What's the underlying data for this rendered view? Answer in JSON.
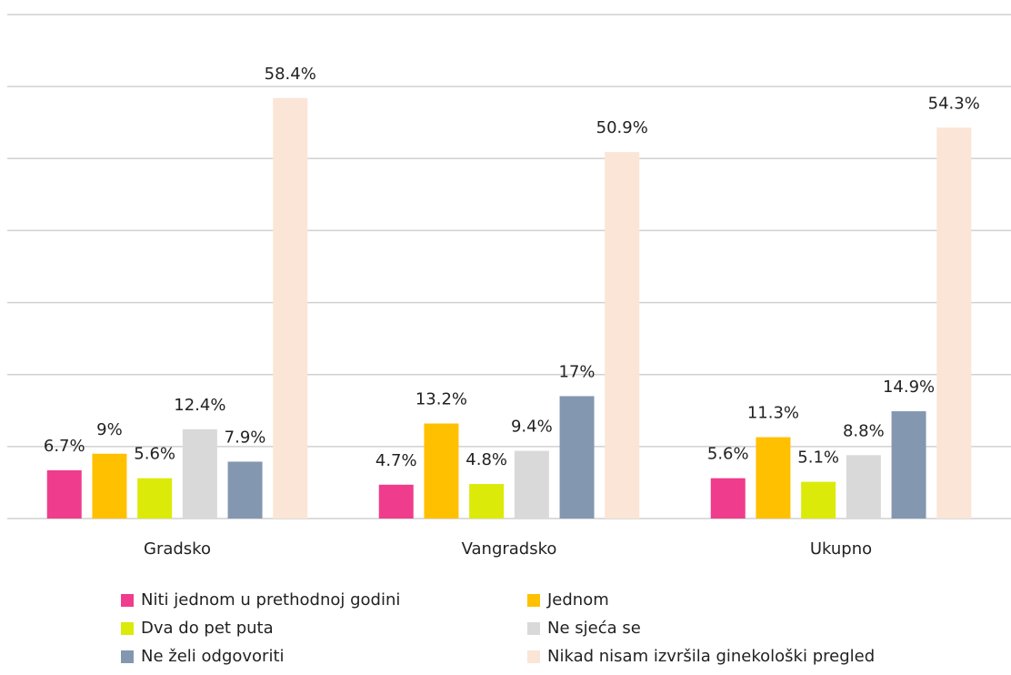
{
  "chart_data": {
    "type": "bar",
    "categories": [
      "Gradsko",
      "Vangradsko",
      "Ukupno"
    ],
    "series": [
      {
        "name": "Niti jednom u prethodnoj godini",
        "color": "#f03c8c",
        "values": [
          6.7,
          4.7,
          5.6
        ],
        "value_labels": [
          "6.7%",
          "4.7%",
          "5.6%"
        ]
      },
      {
        "name": "Jednom",
        "color": "#ffc000",
        "values": [
          9,
          13.2,
          11.3
        ],
        "value_labels": [
          "9%",
          "13.2%",
          "11.3%"
        ]
      },
      {
        "name": "Dva do pet puta",
        "color": "#dcea0a",
        "values": [
          5.6,
          4.8,
          5.1
        ],
        "value_labels": [
          "5.6%",
          "4.8%",
          "5.1%"
        ]
      },
      {
        "name": "Ne sjeća se",
        "color": "#d9d9d9",
        "values": [
          12.4,
          9.4,
          8.8
        ],
        "value_labels": [
          "12.4%",
          "9.4%",
          "8.8%"
        ]
      },
      {
        "name": "Ne želi odgovoriti",
        "color": "#8497b0",
        "values": [
          7.9,
          17,
          14.9
        ],
        "value_labels": [
          "7.9%",
          "17%",
          "14.9%"
        ]
      },
      {
        "name": "Nikad nisam izvršila ginekološki pregled",
        "color": "#fbe5d6",
        "values": [
          58.4,
          50.9,
          54.3
        ],
        "value_labels": [
          "58.4%",
          "50.9%",
          "54.3%"
        ]
      }
    ],
    "ylim": [
      0,
      70
    ],
    "yticks": [
      0,
      10,
      20,
      30,
      40,
      50,
      60,
      70
    ],
    "grid": true
  }
}
